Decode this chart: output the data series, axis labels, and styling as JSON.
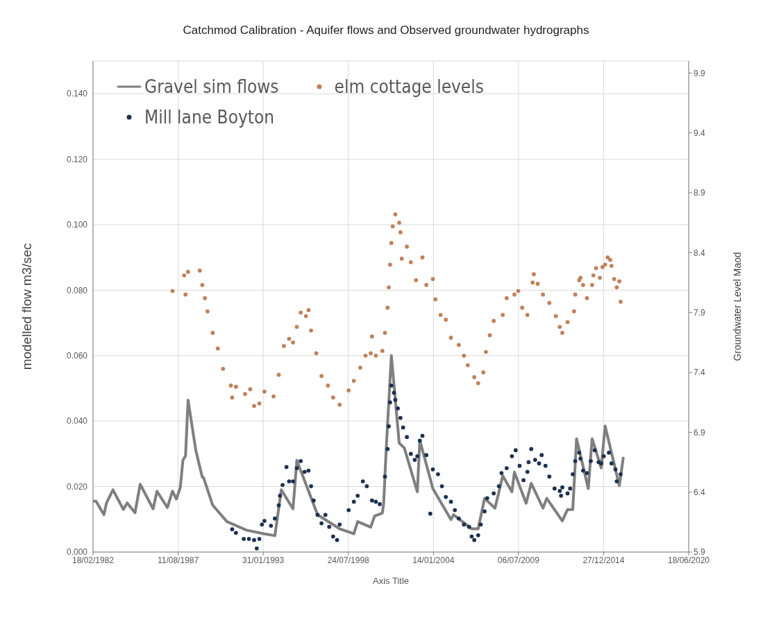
{
  "chart_data": {
    "type": "line",
    "title": "Catchmod Calibration - Aquifer flows and Observed groundwater hydrographs",
    "xlabel": "Axis Title",
    "ylabel": "modelled flow m3/sec",
    "y2label": "Groundwater Level Maod",
    "xlim": [
      "1982-02-18",
      "2020-06-18"
    ],
    "xticks": [
      {
        "value": "1982-02-18",
        "label": "18/02/1982"
      },
      {
        "value": "1987-08-11",
        "label": "11/08/1987"
      },
      {
        "value": "1993-01-31",
        "label": "31/01/1993"
      },
      {
        "value": "1998-07-24",
        "label": "24/07/1998"
      },
      {
        "value": "2004-01-14",
        "label": "14/01/2004"
      },
      {
        "value": "2009-07-06",
        "label": "06/07/2009"
      },
      {
        "value": "2014-12-27",
        "label": "27/12/2014"
      },
      {
        "value": "2020-06-18",
        "label": "18/06/2020"
      }
    ],
    "ylim": [
      0,
      0.15
    ],
    "yticks": [
      {
        "value": 0,
        "label": "0.000"
      },
      {
        "value": 0.02,
        "label": "0.020"
      },
      {
        "value": 0.04,
        "label": "0.040"
      },
      {
        "value": 0.06,
        "label": "0.060"
      },
      {
        "value": 0.08,
        "label": "0.080"
      },
      {
        "value": 0.1,
        "label": "0.100"
      },
      {
        "value": 0.12,
        "label": "0.120"
      },
      {
        "value": 0.14,
        "label": "0.140"
      }
    ],
    "y2lim": [
      5.9,
      10.0
    ],
    "y2ticks": [
      5.9,
      6.4,
      6.9,
      7.4,
      7.9,
      8.4,
      8.9,
      9.4,
      9.9
    ],
    "grid": true,
    "legend": "top left",
    "series": [
      {
        "name": "Gravel sim flows",
        "color": "#7f7f7f",
        "x": [
          "1982-02-18",
          "1982-05",
          "1982-11",
          "1983-01",
          "1983-06",
          "1984-02",
          "1984-05",
          "1984-11",
          "1985-03",
          "1986-01",
          "1986-04",
          "1986-12",
          "1987-04",
          "1987-07",
          "1987-10",
          "1987-12",
          "1988-02",
          "1988-04",
          "1988-10",
          "1989-03",
          "1989-04",
          "1989-11",
          "1990-10",
          "1992-01",
          "1993-02",
          "1993-11",
          "1994-04",
          "1995-01",
          "1995-04",
          "1996-08",
          "1998-01",
          "1998-12",
          "1999-03",
          "2000-01",
          "2000-04",
          "2000-10",
          "2000-11",
          "2001-01",
          "2001-05",
          "2001-07",
          "2001-11",
          "2002-03",
          "2003-01",
          "2003-03",
          "2004-01",
          "2005-03",
          "2005-05",
          "2006-07",
          "2006-12",
          "2007-05",
          "2008-01",
          "2008-07",
          "2009-02",
          "2009-04",
          "2010-01",
          "2010-05",
          "2011-02",
          "2011-05",
          "2012-05",
          "2012-09",
          "2013-01",
          "2013-04",
          "2014-01",
          "2014-04",
          "2014-11",
          "2015-02",
          "2016-01",
          "2016-04"
        ],
        "values": [
          0.0155,
          0.0155,
          0.0114,
          0.015,
          0.019,
          0.013,
          0.015,
          0.012,
          0.0207,
          0.0132,
          0.0186,
          0.0136,
          0.0186,
          0.0162,
          0.0197,
          0.028,
          0.0294,
          0.0464,
          0.031,
          0.0229,
          0.0227,
          0.0143,
          0.0093,
          0.0067,
          0.0056,
          0.005,
          0.019,
          0.0132,
          0.028,
          0.0114,
          0.0071,
          0.0056,
          0.0093,
          0.0076,
          0.011,
          0.0119,
          0.0149,
          0.0318,
          0.06,
          0.0512,
          0.0333,
          0.0318,
          0.0184,
          0.0341,
          0.0194,
          0.0099,
          0.0114,
          0.0071,
          0.0071,
          0.0164,
          0.0134,
          0.0233,
          0.0184,
          0.0244,
          0.0149,
          0.021,
          0.0134,
          0.0164,
          0.0095,
          0.013,
          0.013,
          0.0346,
          0.0194,
          0.0346,
          0.0257,
          0.0385,
          0.0203,
          0.0287
        ]
      },
      {
        "name": "elm cottage levels",
        "type": "scatter",
        "axis": "y2",
        "color": "#c0805a",
        "x": [
          "1987-04",
          "1988-01",
          "1988-02",
          "1988-04",
          "1989-01",
          "1989-03",
          "1989-05",
          "1989-07",
          "1989-11",
          "1990-03",
          "1990-07",
          "1991-01",
          "1991-02",
          "1991-05",
          "1991-12",
          "1992-04",
          "1992-07",
          "1992-11",
          "1993-03",
          "1993-10",
          "1994-02",
          "1994-06",
          "1994-10",
          "1995-01",
          "1995-04",
          "1995-07",
          "1995-11",
          "1996-01",
          "1996-03",
          "1996-07",
          "1996-11",
          "1997-04",
          "1997-08",
          "1998-01",
          "1998-08",
          "1998-12",
          "1999-05",
          "1999-09",
          "2000-01",
          "2000-02",
          "2000-05",
          "2000-10",
          "2000-12",
          "2001-02",
          "2001-03",
          "2001-04",
          "2001-05",
          "2001-06",
          "2001-08",
          "2001-11",
          "2001-12",
          "2002-01",
          "2002-05",
          "2002-08",
          "2002-12",
          "2003-05",
          "2003-08",
          "2004-01",
          "2004-03",
          "2004-07",
          "2004-11",
          "2005-03",
          "2005-09",
          "2006-01",
          "2006-04",
          "2006-09",
          "2006-12",
          "2007-04",
          "2007-06",
          "2007-09",
          "2007-12",
          "2008-07",
          "2008-10",
          "2009-04",
          "2009-07",
          "2009-10",
          "2010-02",
          "2010-06",
          "2010-07",
          "2010-10",
          "2011-02",
          "2011-07",
          "2011-12",
          "2012-03",
          "2012-05",
          "2012-09",
          "2013-02",
          "2013-03",
          "2013-06",
          "2013-07",
          "2013-09",
          "2013-12",
          "2014-04",
          "2014-05",
          "2014-07",
          "2014-10",
          "2014-12",
          "2015-02",
          "2015-04",
          "2015-06",
          "2015-07",
          "2015-09",
          "2015-11",
          "2016-01",
          "2016-02"
        ],
        "values": [
          8.08,
          8.21,
          8.05,
          8.24,
          8.25,
          8.13,
          8.02,
          7.91,
          7.73,
          7.6,
          7.43,
          7.29,
          7.19,
          7.28,
          7.22,
          7.26,
          7.12,
          7.14,
          7.24,
          7.2,
          7.38,
          7.62,
          7.68,
          7.65,
          7.78,
          7.9,
          7.87,
          7.92,
          7.75,
          7.56,
          7.37,
          7.29,
          7.19,
          7.13,
          7.25,
          7.33,
          7.44,
          7.54,
          7.56,
          7.7,
          7.54,
          7.58,
          7.73,
          7.94,
          8.11,
          8.3,
          8.48,
          8.62,
          8.72,
          8.65,
          8.57,
          8.35,
          8.45,
          8.32,
          8.17,
          8.36,
          8.13,
          8.18,
          8.01,
          7.88,
          7.84,
          7.69,
          7.63,
          7.54,
          7.46,
          7.36,
          7.31,
          7.4,
          7.57,
          7.71,
          7.83,
          7.88,
          8.02,
          8.05,
          8.08,
          7.94,
          7.88,
          8.15,
          8.22,
          8.14,
          8.05,
          7.98,
          7.87,
          7.78,
          7.73,
          7.82,
          7.91,
          8.05,
          8.17,
          8.19,
          8.13,
          8.02,
          8.13,
          8.21,
          8.27,
          8.19,
          8.28,
          8.3,
          8.36,
          8.34,
          8.29,
          8.18,
          8.11,
          8.16,
          7.99
        ]
      },
      {
        "name": "Mill lane Boyton",
        "type": "scatter",
        "axis": "y2",
        "color": "#1f3050",
        "x": [
          "1991-02",
          "1991-05",
          "1991-11",
          "1992-03",
          "1992-07",
          "1992-09",
          "1992-11",
          "1993-01",
          "1993-03",
          "1993-08",
          "1993-11",
          "1994-02",
          "1994-03",
          "1994-05",
          "1994-08",
          "1994-10",
          "1995-01",
          "1995-04",
          "1995-07",
          "1995-10",
          "1996-01",
          "1996-03",
          "1996-05",
          "1996-08",
          "1996-11",
          "1997-02",
          "1997-05",
          "1997-08",
          "1997-11",
          "1998-01",
          "1998-08",
          "1998-12",
          "1999-03",
          "1999-07",
          "1999-10",
          "2000-02",
          "2000-05",
          "2000-08",
          "2000-12",
          "2001-02",
          "2001-03",
          "2001-04",
          "2001-05",
          "2001-07",
          "2001-08",
          "2001-10",
          "2001-12",
          "2002-02",
          "2002-05",
          "2002-08",
          "2002-11",
          "2003-01",
          "2003-03",
          "2003-05",
          "2003-08",
          "2003-11",
          "2004-01",
          "2004-05",
          "2004-08",
          "2004-11",
          "2005-03",
          "2005-06",
          "2005-09",
          "2006-01",
          "2006-05",
          "2006-07",
          "2006-09",
          "2006-12",
          "2007-02",
          "2007-05",
          "2007-07",
          "2007-12",
          "2008-04",
          "2008-06",
          "2008-10",
          "2009-02",
          "2009-05",
          "2009-08",
          "2009-11",
          "2010-02",
          "2010-03",
          "2010-05",
          "2010-08",
          "2010-11",
          "2011-01",
          "2011-04",
          "2011-07",
          "2011-11",
          "2012-03",
          "2012-04",
          "2012-05",
          "2012-09",
          "2012-11",
          "2013-01",
          "2013-03",
          "2013-06",
          "2013-07",
          "2013-09",
          "2013-12",
          "2014-03",
          "2014-06",
          "2014-09",
          "2014-11",
          "2015-01",
          "2015-05",
          "2015-07",
          "2015-10",
          "2015-11",
          "2016-02"
        ],
        "values": [
          6.09,
          6.06,
          6.01,
          6.01,
          6.0,
          5.93,
          6.01,
          6.13,
          6.16,
          6.12,
          6.18,
          6.29,
          6.37,
          6.46,
          6.61,
          6.49,
          6.49,
          6.6,
          6.66,
          6.57,
          6.58,
          6.45,
          6.33,
          6.21,
          6.14,
          6.21,
          6.11,
          6.03,
          6.0,
          6.13,
          6.25,
          6.32,
          6.37,
          6.49,
          6.45,
          6.33,
          6.32,
          6.3,
          6.53,
          6.76,
          6.95,
          7.15,
          7.29,
          7.23,
          7.17,
          7.1,
          7.02,
          6.94,
          6.86,
          6.72,
          6.67,
          6.7,
          6.83,
          6.87,
          6.71,
          6.22,
          6.59,
          6.55,
          6.45,
          6.36,
          6.32,
          6.25,
          6.18,
          6.13,
          6.11,
          6.03,
          6.0,
          6.04,
          6.13,
          6.24,
          6.35,
          6.39,
          6.45,
          6.56,
          6.6,
          6.7,
          6.75,
          6.62,
          6.5,
          6.57,
          6.65,
          6.76,
          6.67,
          6.64,
          6.71,
          6.62,
          6.53,
          6.43,
          6.41,
          6.37,
          6.44,
          6.39,
          6.43,
          6.55,
          6.66,
          6.73,
          6.68,
          6.58,
          6.56,
          6.66,
          6.75,
          6.65,
          6.64,
          6.7,
          6.73,
          6.64,
          6.59,
          6.49,
          6.55
        ]
      }
    ]
  }
}
